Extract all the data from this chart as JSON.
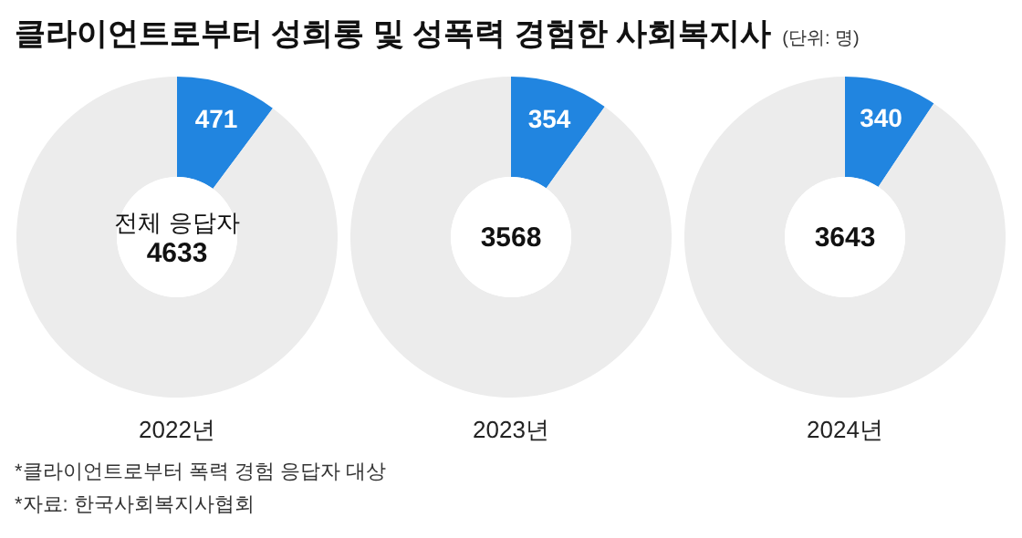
{
  "chart_data": [
    {
      "type": "donut",
      "xlabel": "2022년",
      "categories": [
        null,
        null
      ],
      "values": [
        471,
        4162
      ],
      "colors": [
        "#2185e0",
        "#ececec"
      ],
      "value_labels": [
        "471",
        null
      ],
      "annotations": [
        "전체 응답자",
        "4633"
      ]
    },
    {
      "type": "donut",
      "xlabel": "2023년",
      "categories": [
        null,
        null
      ],
      "values": [
        354,
        3214
      ],
      "colors": [
        "#2185e0",
        "#ececec"
      ],
      "value_labels": [
        "354",
        null
      ],
      "annotations": [
        "3568"
      ]
    },
    {
      "type": "donut",
      "xlabel": "2024년",
      "categories": [
        null,
        null
      ],
      "values": [
        340,
        3303
      ],
      "colors": [
        "#2185e0",
        "#ececec"
      ],
      "value_labels": [
        "340",
        null
      ],
      "annotations": [
        "3643"
      ]
    },
    {
      "type": "other",
      "title": "클라이언트로부터 성희롱 및 성폭력 경험한 사회복지사",
      "subtitle": "(단위: 명)",
      "annotations": [
        "*클라이언트로부터 폭력 경험 응답자 대상",
        "*자료: 한국사회복지사협회"
      ]
    }
  ]
}
